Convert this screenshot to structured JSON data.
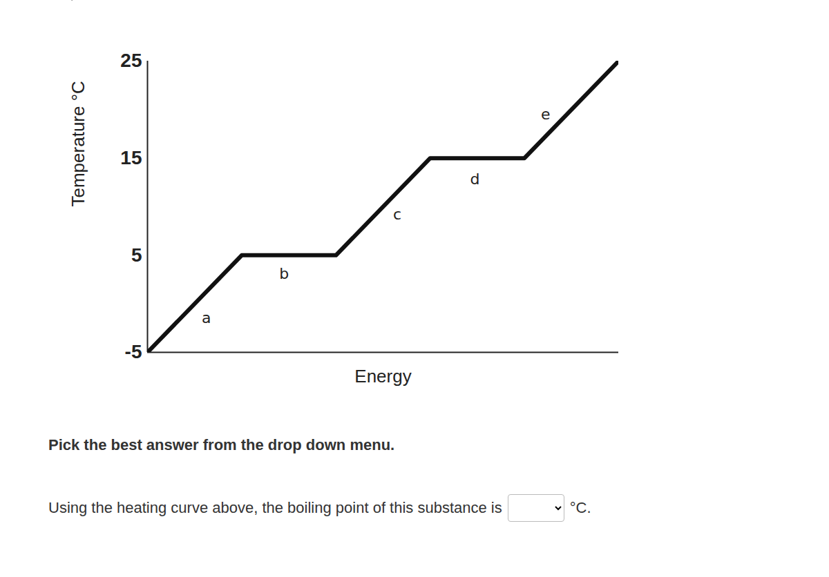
{
  "chart_data": {
    "type": "line",
    "x_label": "Energy",
    "y_label": "Temperature °C",
    "x": [
      0,
      2,
      4,
      6,
      8,
      10
    ],
    "values": [
      -5,
      5,
      5,
      15,
      15,
      25
    ],
    "color": "#111111",
    "xlim": [
      0,
      10
    ],
    "ylim": [
      -5,
      25
    ],
    "yticks": [
      -5,
      5,
      15,
      25
    ],
    "tick_labels": "y",
    "annotations": [
      {
        "text": "a",
        "x": 1.25,
        "y": -1.5
      },
      {
        "text": "b",
        "x": 2.9,
        "y": 3.1
      },
      {
        "text": "c",
        "x": 5.3,
        "y": 9.2
      },
      {
        "text": "d",
        "x": 6.95,
        "y": 12.8
      },
      {
        "text": "e",
        "x": 8.45,
        "y": 19.5
      }
    ]
  },
  "question": {
    "instruction": "Pick the best answer from the drop down menu.",
    "prompt": "Using the heating curve above, the boiling point of this substance is",
    "unit": "°C."
  }
}
